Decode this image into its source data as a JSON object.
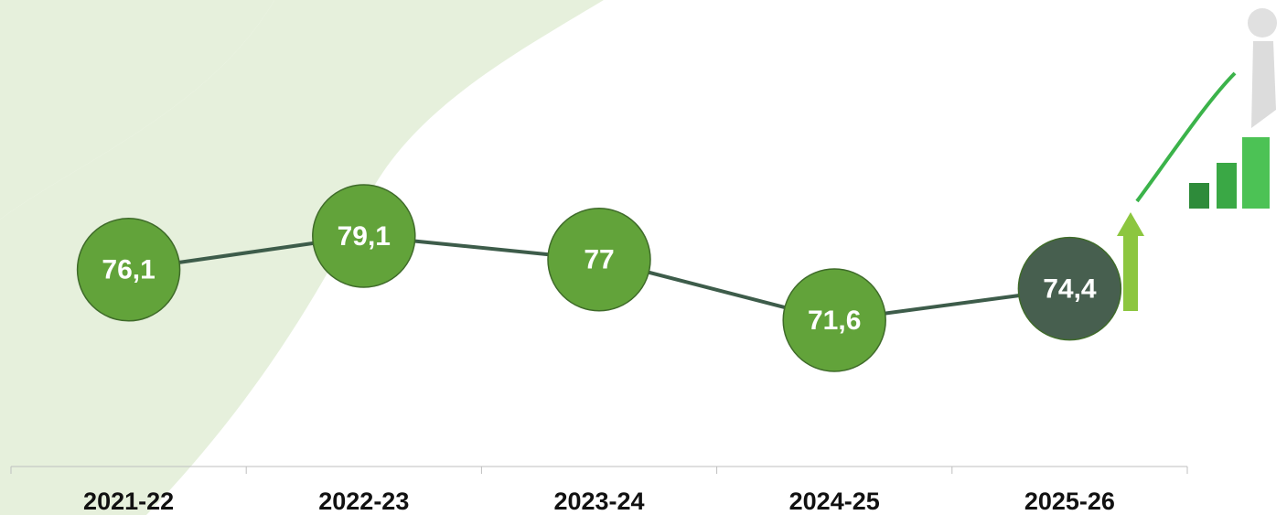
{
  "chart_data": {
    "type": "line",
    "categories": [
      "2021-22",
      "2022-23",
      "2023-24",
      "2024-25",
      "2025-26"
    ],
    "values": [
      76.1,
      79.1,
      77,
      71.6,
      74.4
    ],
    "value_labels": [
      "76,1",
      "79,1",
      "77",
      "71,6",
      "74,4"
    ],
    "line_color": "#3d5c4a",
    "point_colors": [
      "#62a33a",
      "#62a33a",
      "#62a33a",
      "#62a33a",
      "#475f4f"
    ]
  }
}
